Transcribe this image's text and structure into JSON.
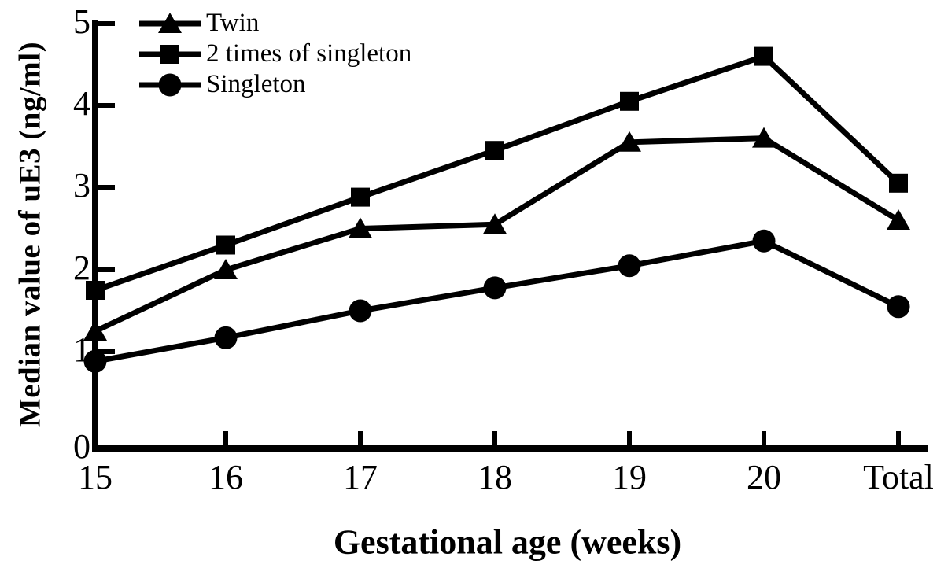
{
  "figure": {
    "background": "#ffffff",
    "ink_color": "#000000"
  },
  "chart_data": {
    "type": "line",
    "title": "",
    "xlabel": "Gestational age (weeks)",
    "ylabel": "Median value of uE3 (ng/ml)",
    "categories": [
      "15",
      "16",
      "17",
      "18",
      "19",
      "20",
      "Total"
    ],
    "y_ticks": [
      "0",
      "1",
      "2",
      "3",
      "4",
      "5"
    ],
    "ylim": [
      0,
      5
    ],
    "grid": false,
    "legend_position": "top-left-inside",
    "series": [
      {
        "name": "Twin",
        "marker": "triangle",
        "values": [
          1.25,
          2.0,
          2.5,
          2.55,
          3.55,
          3.6,
          2.6
        ]
      },
      {
        "name": "2 times of singleton",
        "marker": "square",
        "values": [
          1.75,
          2.3,
          2.88,
          3.45,
          4.05,
          4.6,
          3.05
        ]
      },
      {
        "name": "Singleton",
        "marker": "circle",
        "values": [
          0.9,
          1.17,
          1.5,
          1.78,
          2.05,
          2.35,
          1.55
        ]
      }
    ]
  }
}
